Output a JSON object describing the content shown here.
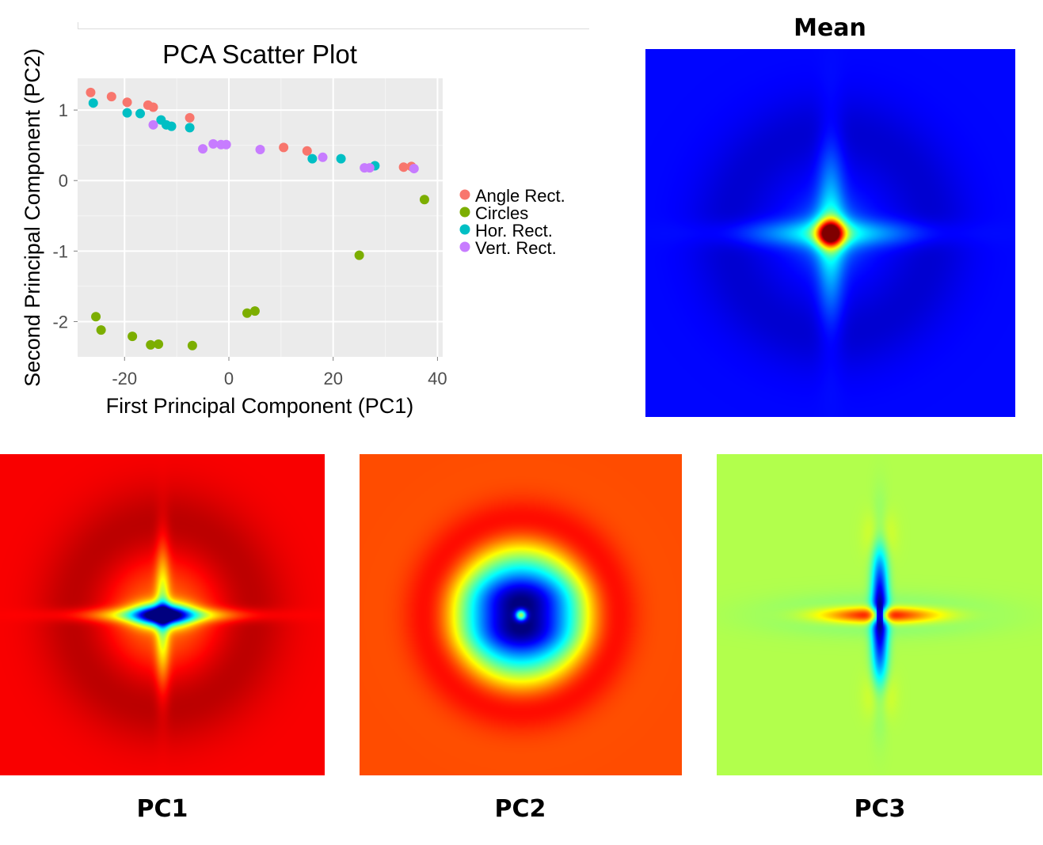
{
  "chart_data": [
    {
      "type": "scatter",
      "title": "PCA Scatter Plot",
      "xlabel": "First Principal Component (PC1)",
      "ylabel": "Second Principal Component (PC2)",
      "xlim": [
        -29,
        41
      ],
      "ylim": [
        -2.5,
        1.45
      ],
      "x_ticks": [
        -20,
        0,
        20,
        40
      ],
      "x_tick_labels": [
        "-20",
        "0",
        "20",
        "40"
      ],
      "y_ticks": [
        1,
        0,
        -1,
        -2
      ],
      "y_tick_labels": [
        "1",
        "0",
        "-1",
        "-2"
      ],
      "grid": true,
      "background": "#ebebeb",
      "legend_position": "right",
      "series": [
        {
          "name": "Angle Rect.",
          "color": "#f8766d",
          "x": [
            -26.5,
            -22.5,
            -19.5,
            -15.5,
            -14.5,
            -7.5,
            10.5,
            15,
            33.5,
            35
          ],
          "y": [
            1.25,
            1.19,
            1.11,
            1.07,
            1.04,
            0.89,
            0.47,
            0.42,
            0.19,
            0.2
          ]
        },
        {
          "name": "Circles",
          "color": "#7cae00",
          "x": [
            37.5,
            25,
            -25.5,
            -24.5,
            -18.5,
            -15,
            -13.5,
            -7,
            3.5,
            5
          ],
          "y": [
            -0.27,
            -1.06,
            -1.93,
            -2.12,
            -2.21,
            -2.33,
            -2.32,
            -2.34,
            -1.88,
            -1.85
          ]
        },
        {
          "name": "Hor. Rect.",
          "color": "#00bfc4",
          "x": [
            -26,
            -19.5,
            -17,
            -13,
            -12,
            -11,
            -7.5,
            16,
            21.5,
            28
          ],
          "y": [
            1.1,
            0.96,
            0.95,
            0.86,
            0.79,
            0.77,
            0.75,
            0.31,
            0.31,
            0.21
          ]
        },
        {
          "name": "Vert. Rect.",
          "color": "#c77cff",
          "x": [
            -14.5,
            -5,
            -3,
            -1.5,
            -0.5,
            6,
            18,
            26,
            27,
            35.5
          ],
          "y": [
            0.79,
            0.45,
            0.52,
            0.51,
            0.51,
            0.44,
            0.33,
            0.18,
            0.18,
            0.17
          ]
        }
      ]
    },
    {
      "type": "heatmap",
      "title": "Mean",
      "colormap": "jet",
      "colors": {
        "background": "#0010d8",
        "ring": "#00108a",
        "center": "#c00000"
      }
    },
    {
      "type": "heatmap",
      "title": "PC1",
      "colormap": "jet",
      "colors": {
        "background": "#f51e00",
        "ring": "#a00a00",
        "center": "#0000d0"
      }
    },
    {
      "type": "heatmap",
      "title": "PC2",
      "colormap": "jet",
      "colors": {
        "background": "#ff5a00",
        "ring": "#b40000",
        "center": "#0040ff"
      }
    },
    {
      "type": "heatmap",
      "title": "PC3",
      "colormap": "jet",
      "colors": {
        "background": "#66f29a",
        "cross_horizontal": "#c00000",
        "cross_vertical": "#00008a"
      }
    }
  ]
}
